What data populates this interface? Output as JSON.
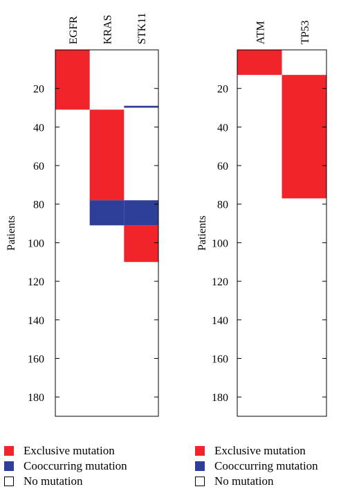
{
  "chart_data": [
    {
      "type": "heatmap",
      "ylabel": "Patients",
      "ylim": [
        0,
        190
      ],
      "yticks": [
        20,
        40,
        60,
        80,
        100,
        120,
        140,
        160,
        180
      ],
      "columns": [
        "EGFR",
        "KRAS",
        "STK11"
      ],
      "cells": [
        {
          "column": "EGFR",
          "from": 0,
          "to": 31,
          "status": "exclusive"
        },
        {
          "column": "KRAS",
          "from": 31,
          "to": 78,
          "status": "exclusive"
        },
        {
          "column": "STK11",
          "from": 29,
          "to": 30,
          "status": "cooccurring"
        },
        {
          "column": "KRAS",
          "from": 78,
          "to": 91,
          "status": "cooccurring"
        },
        {
          "column": "STK11",
          "from": 78,
          "to": 91,
          "status": "cooccurring"
        },
        {
          "column": "STK11",
          "from": 91,
          "to": 110,
          "status": "exclusive"
        }
      ],
      "legend": [
        {
          "key": "exclusive",
          "label": "Exclusive mutation"
        },
        {
          "key": "cooccurring",
          "label": "Cooccurring mutation"
        },
        {
          "key": "none",
          "label": "No mutation"
        }
      ]
    },
    {
      "type": "heatmap",
      "ylabel": "Patients",
      "ylim": [
        0,
        190
      ],
      "yticks": [
        20,
        40,
        60,
        80,
        100,
        120,
        140,
        160,
        180
      ],
      "columns": [
        "ATM",
        "TP53"
      ],
      "cells": [
        {
          "column": "ATM",
          "from": 0,
          "to": 13,
          "status": "exclusive"
        },
        {
          "column": "TP53",
          "from": 13,
          "to": 77,
          "status": "exclusive"
        }
      ],
      "legend": [
        {
          "key": "exclusive",
          "label": "Exclusive mutation"
        },
        {
          "key": "cooccurring",
          "label": "Cooccurring mutation"
        },
        {
          "key": "none",
          "label": "No mutation"
        }
      ]
    }
  ],
  "colors": {
    "exclusive": "#f0242a",
    "cooccurring": "#2e3f9a",
    "none": "#ffffff",
    "frame": "#000000"
  }
}
